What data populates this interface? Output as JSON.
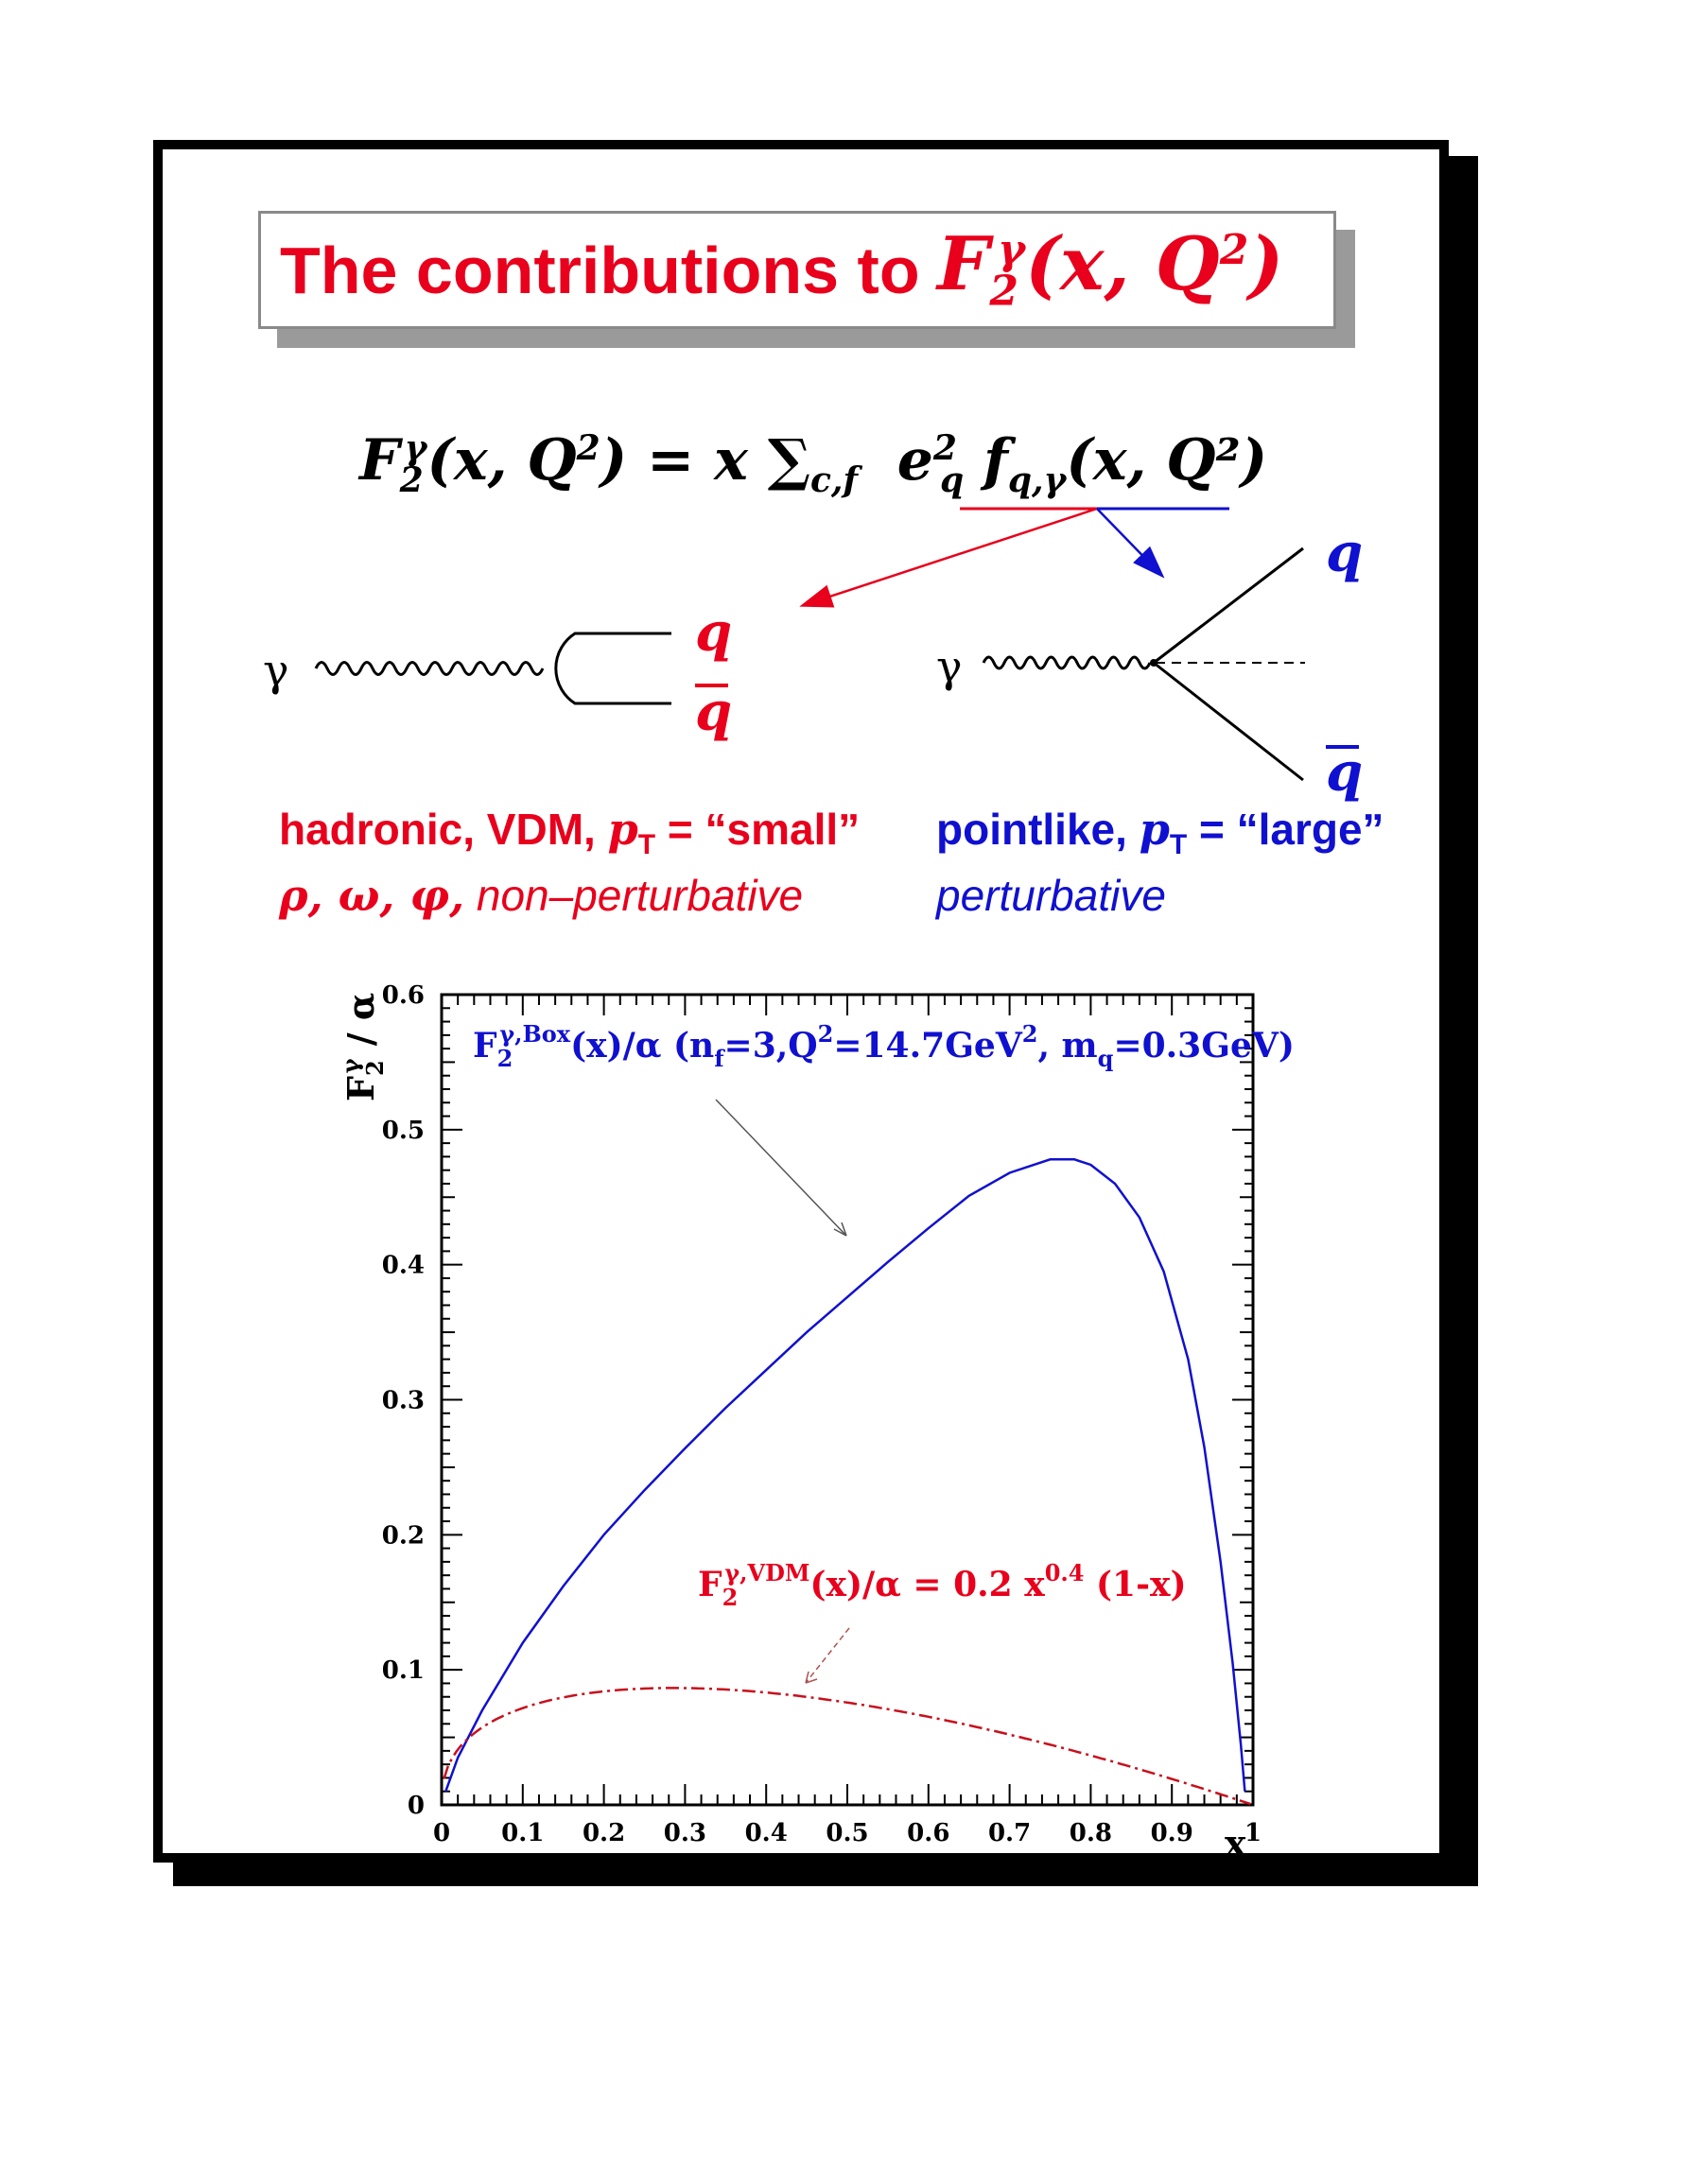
{
  "title": {
    "text": "The contributions to",
    "math": "F₂^γ(x, Q²)"
  },
  "formula": {
    "lhs": "F₂^γ(x, Q²)",
    "rhs_prefix": "= x ∑",
    "sum_sub": "c,f",
    "charge": "e",
    "charge_sup": "2",
    "charge_sub": "q",
    "pdf": "f",
    "pdf_sub": "q,γ",
    "pdf_args": "(x, Q²)"
  },
  "diagrams": {
    "left": {
      "photon": "γ",
      "quark": "q",
      "antiquark": "q"
    },
    "right": {
      "photon": "γ",
      "quark": "q",
      "antiquark": "q"
    }
  },
  "descriptions": {
    "hadronic_line1_a": "hadronic, VDM, ",
    "hadronic_line1_pt": "p",
    "hadronic_line1_pt_sub": "T",
    "hadronic_line1_b": " = “small”",
    "hadronic_line2_math": "ρ, ω, φ,",
    "hadronic_line2_text": " non–perturbative",
    "pointlike_line1_a": "pointlike, ",
    "pointlike_line1_pt": "p",
    "pointlike_line1_pt_sub": "T",
    "pointlike_line1_b": " = “large”",
    "pointlike_line2": "perturbative"
  },
  "colors": {
    "red": "#e8001c",
    "blue": "#1010d0",
    "vdm": "#c8101c"
  },
  "chart_data": {
    "type": "line",
    "xlabel": "x",
    "ylabel": "F₂^γ / α",
    "xlim": [
      0,
      1
    ],
    "ylim": [
      0,
      0.6
    ],
    "xticks": [
      "0",
      "0.1",
      "0.2",
      "0.3",
      "0.4",
      "0.5",
      "0.6",
      "0.7",
      "0.8",
      "0.9",
      "1"
    ],
    "yticks": [
      "0",
      "0.1",
      "0.2",
      "0.3",
      "0.4",
      "0.5",
      "0.6"
    ],
    "series": [
      {
        "name": "F₂^γ,Box(x)/α (n_f=3,Q²=14.7GeV², m_q=0.3GeV)",
        "label_main": "F",
        "label_sub": "2",
        "label_sup": "γ,Box",
        "label_rest": "(x)/α (n",
        "label_nf_sub": "f",
        "label_rest2": "=3,Q",
        "label_q_sup": "2",
        "label_rest3": "=14.7GeV",
        "label_gev_sup": "2",
        "label_rest4": ", m",
        "label_mq_sub": "q",
        "label_rest5": "=0.3GeV)",
        "style": "solid",
        "x": [
          0.005,
          0.02,
          0.05,
          0.1,
          0.15,
          0.2,
          0.25,
          0.3,
          0.35,
          0.4,
          0.45,
          0.5,
          0.55,
          0.6,
          0.65,
          0.7,
          0.75,
          0.78,
          0.8,
          0.83,
          0.86,
          0.89,
          0.92,
          0.94,
          0.96,
          0.975,
          0.985,
          0.99
        ],
        "y": [
          0.01,
          0.035,
          0.07,
          0.12,
          0.162,
          0.2,
          0.233,
          0.264,
          0.294,
          0.322,
          0.35,
          0.376,
          0.402,
          0.427,
          0.451,
          0.468,
          0.478,
          0.478,
          0.474,
          0.46,
          0.435,
          0.395,
          0.33,
          0.265,
          0.18,
          0.105,
          0.045,
          0.01
        ]
      },
      {
        "name": "F₂^γ,VDM(x)/α = 0.2 x^0.4 (1-x)",
        "label_main": "F",
        "label_sub": "2",
        "label_sup": "γ,VDM",
        "label_rest": "(x)/α = 0.2 x",
        "label_exp": "0.4",
        "label_rest2": " (1-x)",
        "style": "dashdot",
        "formula": {
          "a": 0.2,
          "p": 0.4
        }
      }
    ]
  }
}
